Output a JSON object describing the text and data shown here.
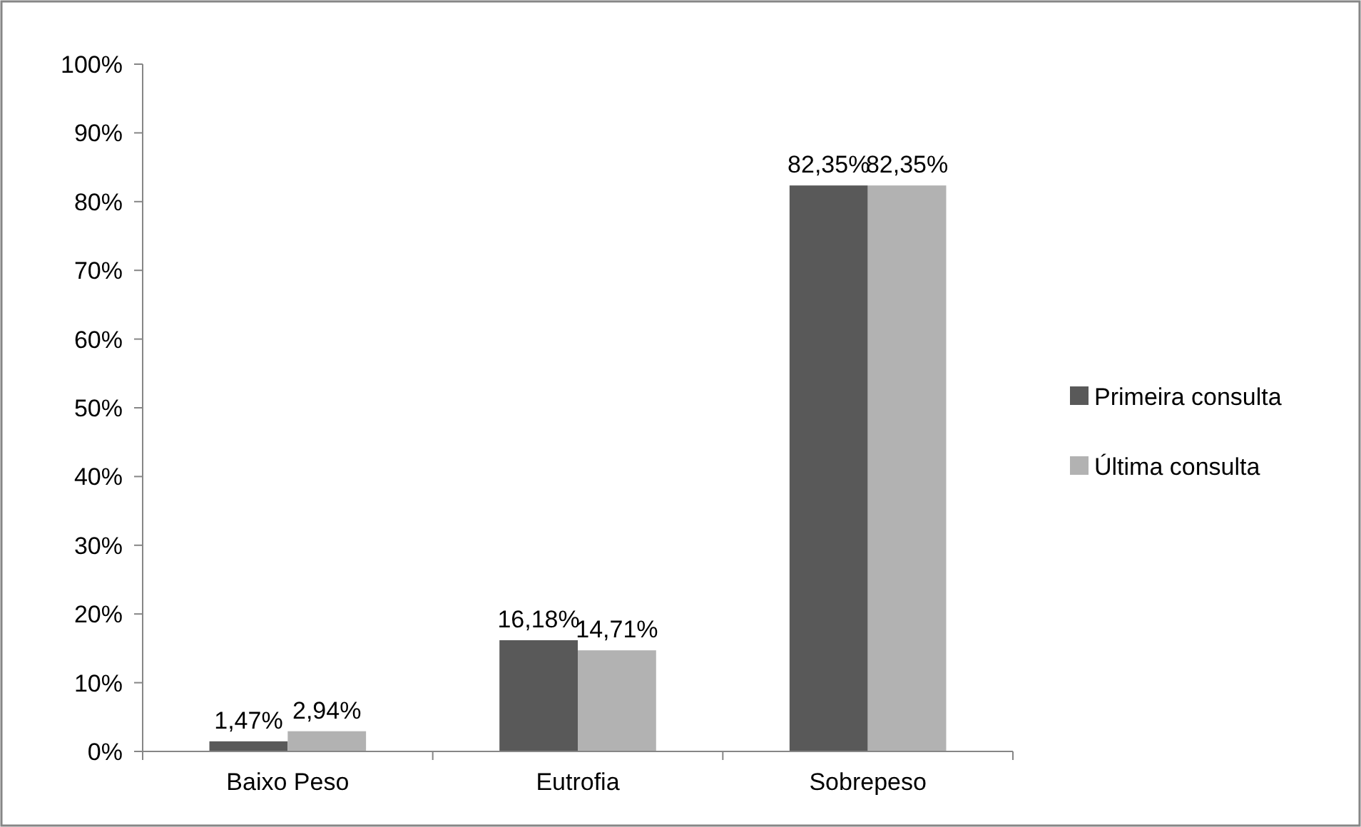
{
  "chart_data": {
    "type": "bar",
    "categories": [
      "Baixo Peso",
      "Eutrofia",
      "Sobrepeso"
    ],
    "series": [
      {
        "name": "Primeira consulta",
        "color": "#595959",
        "values": [
          1.47,
          16.18,
          82.35
        ],
        "value_labels": [
          "1,47%",
          "16,18%",
          "82,35%"
        ]
      },
      {
        "name": "Última consulta",
        "color": "#b2b2b2",
        "values": [
          2.94,
          14.71,
          82.35
        ],
        "value_labels": [
          "2,94%",
          "14,71%",
          "82,35%"
        ]
      }
    ],
    "ylim": [
      0,
      100
    ],
    "yticks": [
      {
        "value": 0,
        "label": "0%"
      },
      {
        "value": 10,
        "label": "10%"
      },
      {
        "value": 20,
        "label": "20%"
      },
      {
        "value": 30,
        "label": "30%"
      },
      {
        "value": 40,
        "label": "40%"
      },
      {
        "value": 50,
        "label": "50%"
      },
      {
        "value": 60,
        "label": "60%"
      },
      {
        "value": 70,
        "label": "70%"
      },
      {
        "value": 80,
        "label": "80%"
      },
      {
        "value": 90,
        "label": "90%"
      },
      {
        "value": 100,
        "label": "100%"
      }
    ],
    "grid": false,
    "legend": "right"
  }
}
